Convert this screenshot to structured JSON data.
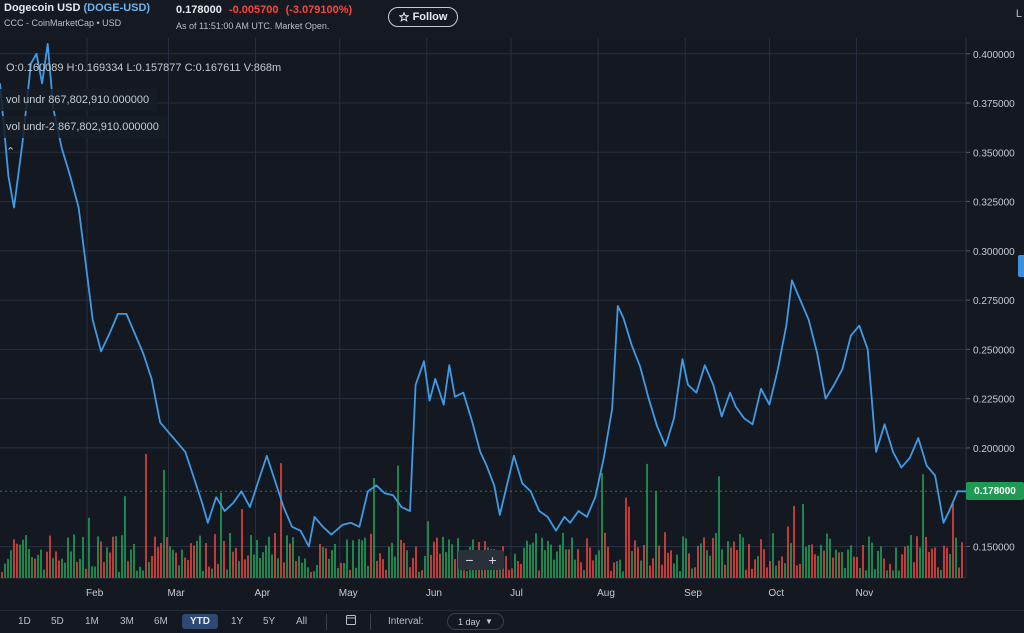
{
  "header": {
    "name": "Dogecoin USD",
    "ticker": "(DOGE-USD)",
    "source": "CCC - CoinMarketCap • USD",
    "price": "0.178000",
    "change": "-0.005700",
    "change_pct": "(-3.079100%)",
    "as_of": "As of 11:51:00 AM UTC. Market Open.",
    "follow_label": "Follow",
    "follow_icon": "star-outline-icon",
    "right_text": "L"
  },
  "legend": {
    "ohlc": "O:0.160089  H:0.169334  L:0.157877  C:0.167611  V:868m",
    "vol1": "vol undr  867,802,910.000000",
    "vol2": "vol undr-2  867,802,910.000000",
    "collapse_icon": "chevron-up-icon"
  },
  "chart_data": {
    "type": "line",
    "y_ticks": [
      "0.400000",
      "0.375000",
      "0.350000",
      "0.325000",
      "0.300000",
      "0.275000",
      "0.250000",
      "0.225000",
      "0.200000",
      "0.150000"
    ],
    "ylim": [
      0.134,
      0.408
    ],
    "x_ticks": [
      "Feb",
      "Mar",
      "Apr",
      "May",
      "Jun",
      "Jul",
      "Aug",
      "Sep",
      "Oct",
      "Nov"
    ],
    "price_series": [
      [
        "2024-01-01",
        0.385
      ],
      [
        "2024-01-04",
        0.338
      ],
      [
        "2024-01-06",
        0.322
      ],
      [
        "2024-01-09",
        0.355
      ],
      [
        "2024-01-12",
        0.395
      ],
      [
        "2024-01-14",
        0.4
      ],
      [
        "2024-01-16",
        0.385
      ],
      [
        "2024-01-18",
        0.405
      ],
      [
        "2024-01-20",
        0.372
      ],
      [
        "2024-01-23",
        0.352
      ],
      [
        "2024-01-26",
        0.338
      ],
      [
        "2024-01-29",
        0.322
      ],
      [
        "2024-02-01",
        0.288
      ],
      [
        "2024-02-03",
        0.265
      ],
      [
        "2024-02-06",
        0.249
      ],
      [
        "2024-02-09",
        0.258
      ],
      [
        "2024-02-12",
        0.268
      ],
      [
        "2024-02-15",
        0.268
      ],
      [
        "2024-02-18",
        0.258
      ],
      [
        "2024-02-21",
        0.248
      ],
      [
        "2024-02-24",
        0.235
      ],
      [
        "2024-02-27",
        0.213
      ],
      [
        "2024-03-01",
        0.208
      ],
      [
        "2024-03-04",
        0.203
      ],
      [
        "2024-03-07",
        0.198
      ],
      [
        "2024-03-10",
        0.185
      ],
      [
        "2024-03-13",
        0.172
      ],
      [
        "2024-03-15",
        0.162
      ],
      [
        "2024-03-18",
        0.175
      ],
      [
        "2024-03-21",
        0.168
      ],
      [
        "2024-03-24",
        0.172
      ],
      [
        "2024-03-27",
        0.178
      ],
      [
        "2024-03-30",
        0.17
      ],
      [
        "2024-04-02",
        0.183
      ],
      [
        "2024-04-05",
        0.196
      ],
      [
        "2024-04-08",
        0.183
      ],
      [
        "2024-04-11",
        0.17
      ],
      [
        "2024-04-14",
        0.16
      ],
      [
        "2024-04-17",
        0.158
      ],
      [
        "2024-04-20",
        0.15
      ],
      [
        "2024-04-22",
        0.165
      ],
      [
        "2024-04-25",
        0.16
      ],
      [
        "2024-04-28",
        0.156
      ],
      [
        "2024-05-02",
        0.161
      ],
      [
        "2024-05-05",
        0.162
      ],
      [
        "2024-05-08",
        0.16
      ],
      [
        "2024-05-11",
        0.178
      ],
      [
        "2024-05-14",
        0.181
      ],
      [
        "2024-05-17",
        0.177
      ],
      [
        "2024-05-20",
        0.176
      ],
      [
        "2024-05-23",
        0.17
      ],
      [
        "2024-05-26",
        0.168
      ],
      [
        "2024-05-28",
        0.232
      ],
      [
        "2024-05-31",
        0.244
      ],
      [
        "2024-06-02",
        0.224
      ],
      [
        "2024-06-04",
        0.235
      ],
      [
        "2024-06-07",
        0.222
      ],
      [
        "2024-06-09",
        0.242
      ],
      [
        "2024-06-11",
        0.226
      ],
      [
        "2024-06-14",
        0.228
      ],
      [
        "2024-06-17",
        0.214
      ],
      [
        "2024-06-20",
        0.198
      ],
      [
        "2024-06-22",
        0.192
      ],
      [
        "2024-06-25",
        0.181
      ],
      [
        "2024-06-27",
        0.166
      ],
      [
        "2024-06-30",
        0.184
      ],
      [
        "2024-07-02",
        0.196
      ],
      [
        "2024-07-05",
        0.182
      ],
      [
        "2024-07-08",
        0.178
      ],
      [
        "2024-07-11",
        0.168
      ],
      [
        "2024-07-14",
        0.165
      ],
      [
        "2024-07-17",
        0.158
      ],
      [
        "2024-07-20",
        0.165
      ],
      [
        "2024-07-22",
        0.162
      ],
      [
        "2024-07-25",
        0.168
      ],
      [
        "2024-07-28",
        0.165
      ],
      [
        "2024-07-31",
        0.175
      ],
      [
        "2024-08-03",
        0.195
      ],
      [
        "2024-08-06",
        0.22
      ],
      [
        "2024-08-08",
        0.272
      ],
      [
        "2024-08-10",
        0.266
      ],
      [
        "2024-08-13",
        0.252
      ],
      [
        "2024-08-16",
        0.241
      ],
      [
        "2024-08-19",
        0.225
      ],
      [
        "2024-08-22",
        0.211
      ],
      [
        "2024-08-25",
        0.201
      ],
      [
        "2024-08-28",
        0.215
      ],
      [
        "2024-08-31",
        0.245
      ],
      [
        "2024-09-02",
        0.232
      ],
      [
        "2024-09-05",
        0.228
      ],
      [
        "2024-09-08",
        0.242
      ],
      [
        "2024-09-11",
        0.232
      ],
      [
        "2024-09-14",
        0.216
      ],
      [
        "2024-09-17",
        0.228
      ],
      [
        "2024-09-19",
        0.221
      ],
      [
        "2024-09-22",
        0.215
      ],
      [
        "2024-09-25",
        0.212
      ],
      [
        "2024-09-28",
        0.23
      ],
      [
        "2024-10-01",
        0.222
      ],
      [
        "2024-10-04",
        0.24
      ],
      [
        "2024-10-07",
        0.262
      ],
      [
        "2024-10-09",
        0.285
      ],
      [
        "2024-10-12",
        0.275
      ],
      [
        "2024-10-15",
        0.265
      ],
      [
        "2024-10-18",
        0.248
      ],
      [
        "2024-10-21",
        0.225
      ],
      [
        "2024-10-24",
        0.232
      ],
      [
        "2024-10-27",
        0.24
      ],
      [
        "2024-10-30",
        0.257
      ],
      [
        "2024-11-02",
        0.262
      ],
      [
        "2024-11-05",
        0.25
      ],
      [
        "2024-11-08",
        0.198
      ],
      [
        "2024-11-11",
        0.212
      ],
      [
        "2024-11-14",
        0.198
      ],
      [
        "2024-11-17",
        0.19
      ],
      [
        "2024-11-20",
        0.195
      ],
      [
        "2024-11-23",
        0.205
      ],
      [
        "2024-11-26",
        0.191
      ],
      [
        "2024-11-29",
        0.186
      ],
      [
        "2024-12-02",
        0.162
      ],
      [
        "2024-12-04",
        0.168
      ],
      [
        "2024-12-07",
        0.178
      ],
      [
        "2024-12-10",
        0.178
      ]
    ],
    "last_price_label": "0.178000"
  },
  "colors": {
    "background": "#131821",
    "price_line": "#3f9be6",
    "volume_up": "#1f9a55",
    "volume_down": "#e0433a",
    "grid": "#273040",
    "last_price_tag": "#1f9a55",
    "change_negative": "#ff433d",
    "ticker_link": "#6db3f2"
  },
  "zoom": {
    "minus": "−",
    "plus": "+"
  },
  "footer": {
    "ranges": [
      "1D",
      "5D",
      "1M",
      "3M",
      "6M",
      "YTD",
      "1Y",
      "5Y",
      "All"
    ],
    "active_range": "YTD",
    "calendar_icon": "calendar-icon",
    "interval_label": "Interval:",
    "interval_value": "1 day"
  }
}
